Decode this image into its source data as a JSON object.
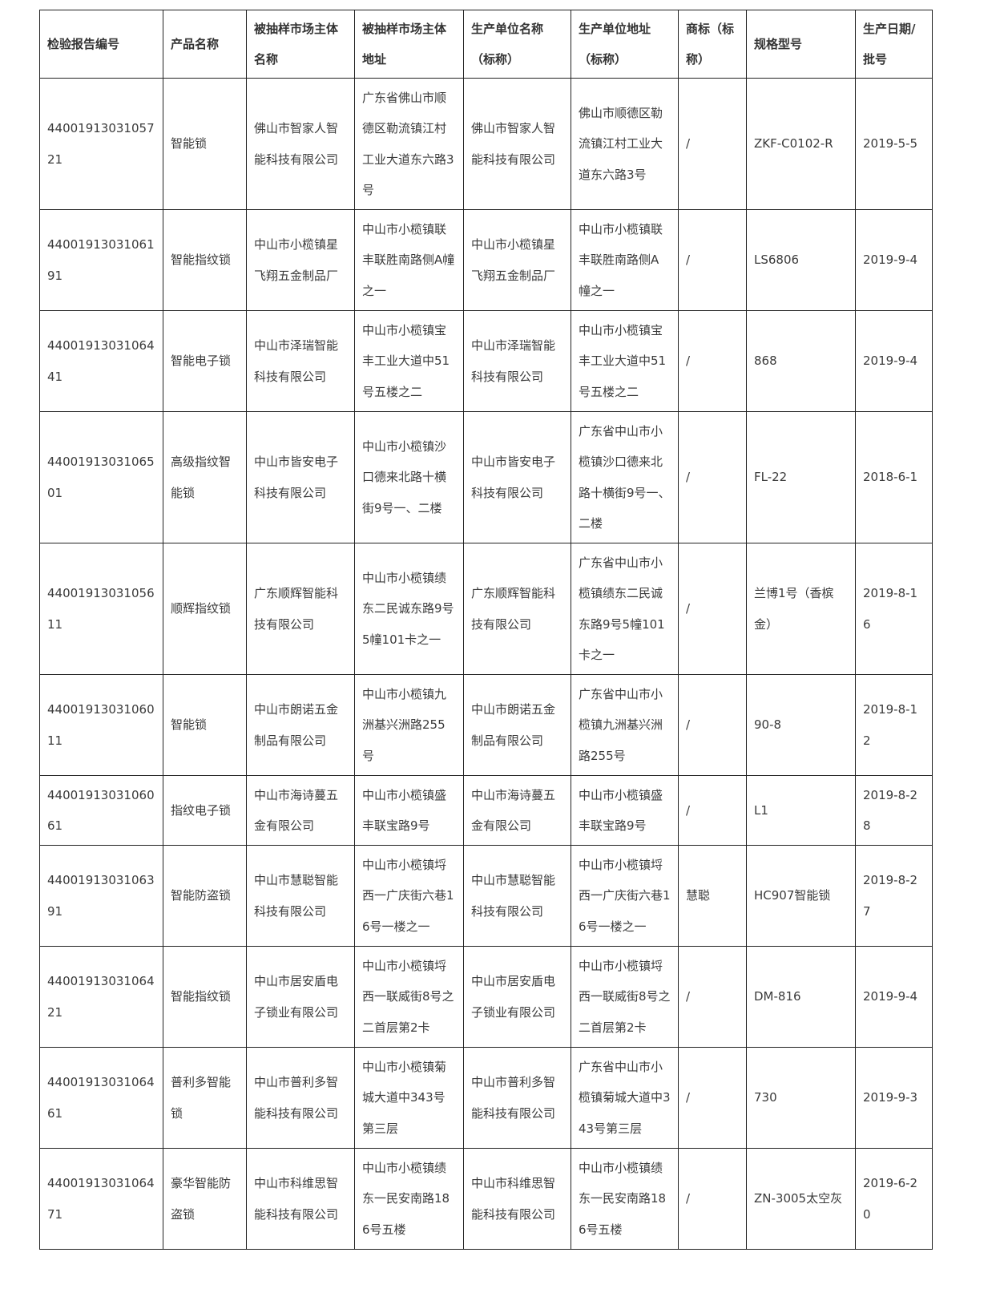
{
  "headers": [
    "检验报告编号",
    "产品名称",
    "被抽样市场主体名称",
    "被抽样市场主体地址",
    "生产单位名称（标称）",
    "生产单位地址（标称）",
    "商标（标称）",
    "规格型号",
    "生产日期/批号"
  ],
  "rows": [
    [
      "4400191303105721",
      "智能锁",
      "佛山市智家人智能科技有限公司",
      "广东省佛山市顺德区勒流镇江村工业大道东六路3号",
      "佛山市智家人智能科技有限公司",
      "佛山市顺德区勒流镇江村工业大道东六路3号",
      "/",
      "ZKF-C0102-R",
      "2019-5-5"
    ],
    [
      "4400191303106191",
      "智能指纹锁",
      "中山市小榄镇星飞翔五金制品厂",
      "中山市小榄镇联丰联胜南路侧A幢之一",
      "中山市小榄镇星飞翔五金制品厂",
      "中山市小榄镇联丰联胜南路侧A幢之一",
      "/",
      "LS6806",
      "2019-9-4"
    ],
    [
      "4400191303106441",
      "智能电子锁",
      "中山市泽瑞智能科技有限公司",
      "中山市小榄镇宝丰工业大道中51号五楼之二",
      "中山市泽瑞智能科技有限公司",
      "中山市小榄镇宝丰工业大道中51号五楼之二",
      "/",
      "868",
      "2019-9-4"
    ],
    [
      "4400191303106501",
      "高级指纹智能锁",
      "中山市皆安电子科技有限公司",
      "中山市小榄镇沙口德来北路十横街9号一、二楼",
      "中山市皆安电子科技有限公司",
      "广东省中山市小榄镇沙口德来北路十横街9号一、二楼",
      "/",
      "FL-22",
      "2018-6-1"
    ],
    [
      "4400191303105611",
      "顺辉指纹锁",
      "广东顺辉智能科技有限公司",
      "中山市小榄镇绩东二民诚东路9号5幢101卡之一",
      "广东顺辉智能科技有限公司",
      "广东省中山市小榄镇绩东二民诚东路9号5幢101卡之一",
      "/",
      "兰博1号（香槟金）",
      "2019-8-16"
    ],
    [
      "4400191303106011",
      "智能锁",
      "中山市朗诺五金制品有限公司",
      "中山市小榄镇九洲基兴洲路255号",
      "中山市朗诺五金制品有限公司",
      "广东省中山市小榄镇九洲基兴洲路255号",
      "/",
      "90-8",
      "2019-8-12"
    ],
    [
      "4400191303106061",
      "指纹电子锁",
      "中山市海诗蔓五金有限公司",
      "中山市小榄镇盛丰联宝路9号",
      "中山市海诗蔓五金有限公司",
      "中山市小榄镇盛丰联宝路9号",
      "/",
      "L1",
      "2019-8-28"
    ],
    [
      "4400191303106391",
      "智能防盗锁",
      "中山市慧聪智能科技有限公司",
      "中山市小榄镇埒西一广庆街六巷16号一楼之一",
      "中山市慧聪智能科技有限公司",
      "中山市小榄镇埒西一广庆街六巷16号一楼之一",
      "慧聪",
      "HC907智能锁",
      "2019-8-27"
    ],
    [
      "4400191303106421",
      "智能指纹锁",
      "中山市居安盾电子锁业有限公司",
      "中山市小榄镇埒西一联威街8号之二首层第2卡",
      "中山市居安盾电子锁业有限公司",
      "中山市小榄镇埒西一联威街8号之二首层第2卡",
      "/",
      "DM-816",
      "2019-9-4"
    ],
    [
      "4400191303106461",
      "普利多智能锁",
      "中山市普利多智能科技有限公司",
      "中山市小榄镇菊城大道中343号第三层",
      "中山市普利多智能科技有限公司",
      "广东省中山市小榄镇菊城大道中343号第三层",
      "/",
      "730",
      "2019-9-3"
    ],
    [
      "4400191303106471",
      "豪华智能防盗锁",
      "中山市科维思智能科技有限公司",
      "中山市小榄镇绩东一民安南路186号五楼",
      "中山市科维思智能科技有限公司",
      "中山市小榄镇绩东一民安南路186号五楼",
      "/",
      "ZN-3005太空灰",
      "2019-6-20"
    ]
  ]
}
